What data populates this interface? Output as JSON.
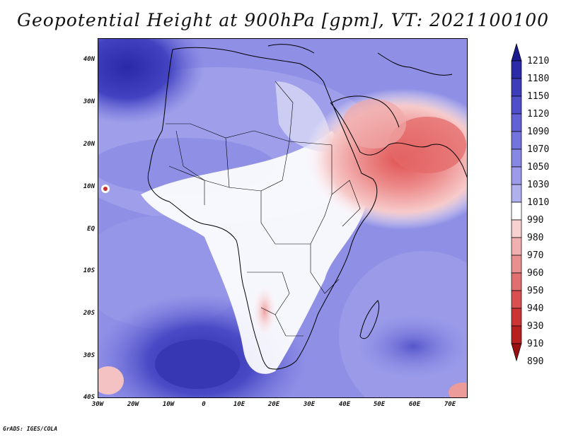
{
  "title": "Geopotential Height at 900hPa [gpm], VT: 2021100100",
  "footer": "GrADS: IGES/COLA",
  "map": {
    "projection": "lat-lon",
    "lon_range": [
      -30,
      75
    ],
    "lat_range": [
      -40,
      45
    ],
    "lat_ticks": [
      "40N",
      "30N",
      "20N",
      "10N",
      "EQ",
      "10S",
      "20S",
      "30S",
      "40S"
    ],
    "lon_ticks": [
      "30W",
      "20W",
      "10W",
      "0",
      "10E",
      "20E",
      "30E",
      "40E",
      "50E",
      "60E",
      "70E"
    ]
  },
  "colorbar": {
    "levels": [
      "1210",
      "1180",
      "1150",
      "1120",
      "1090",
      "1070",
      "1050",
      "1030",
      "1010",
      "990",
      "980",
      "970",
      "960",
      "950",
      "940",
      "930",
      "910",
      "890"
    ],
    "colors": [
      "#1a1a8c",
      "#2b2ba8",
      "#3d3dba",
      "#4f4fca",
      "#6262d6",
      "#7474de",
      "#8787e4",
      "#9b9be9",
      "#b0b0ef",
      "#ffffff",
      "#f7d0d0",
      "#f0b0b0",
      "#e89090",
      "#e07070",
      "#d85050",
      "#cc3434",
      "#b82020",
      "#9a1010"
    ]
  }
}
